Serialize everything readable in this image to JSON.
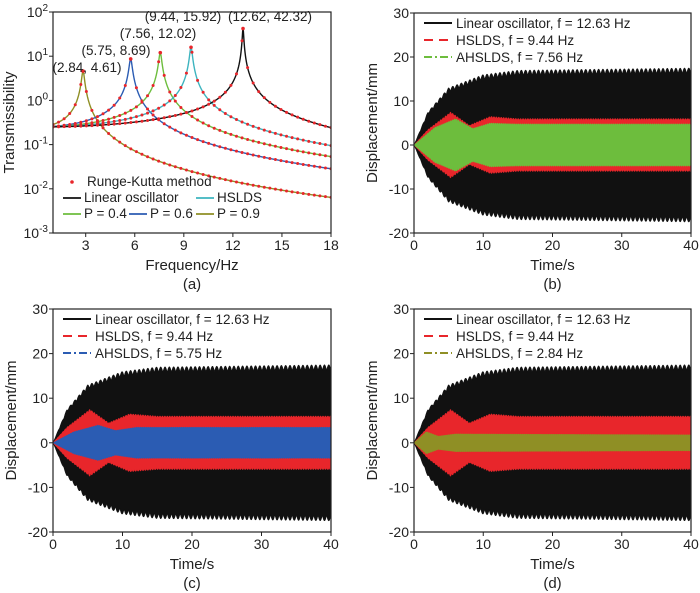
{
  "chart_data": [
    {
      "panel": "(a)",
      "type": "line",
      "xlabel": "Frequency/Hz",
      "ylabel": "Transmissibility",
      "xlim": [
        1,
        18
      ],
      "ylim": [
        0.001,
        100
      ],
      "yscale": "log",
      "xticks": [
        "3",
        "6",
        "9",
        "12",
        "15",
        "18"
      ],
      "yticks": [
        {
          "base": "10",
          "exp": "2"
        },
        {
          "base": "10",
          "exp": "1"
        },
        {
          "base": "10",
          "exp": "0"
        },
        {
          "base": "10",
          "exp": "-1"
        },
        {
          "base": "10",
          "exp": "-2"
        },
        {
          "base": "10",
          "exp": "-3"
        }
      ],
      "legend_position": "bottom-left",
      "legend": [
        {
          "name": "Runge-Kutta method",
          "color": "#e8262b",
          "style": "dots"
        },
        {
          "name": "Linear oscillator",
          "color": "#111111",
          "style": "solid"
        },
        {
          "name": "HSLDS",
          "color": "#3db4bf",
          "style": "solid"
        },
        {
          "name": "P = 0.4",
          "color": "#6dbd3d",
          "style": "solid"
        },
        {
          "name": "P = 0.6",
          "color": "#2b5cb3",
          "style": "solid"
        },
        {
          "name": "P = 0.9",
          "color": "#8f8f25",
          "style": "solid"
        }
      ],
      "series": [
        {
          "legend": "P = 0.9",
          "peak_frequency": 2.84,
          "peak_transmissibility": 4.61,
          "color": "#8f8f25"
        },
        {
          "legend": "P = 0.6",
          "peak_frequency": 5.75,
          "peak_transmissibility": 8.69,
          "color": "#2b5cb3"
        },
        {
          "legend": "P = 0.4",
          "peak_frequency": 7.56,
          "peak_transmissibility": 12.02,
          "color": "#6dbd3d"
        },
        {
          "legend": "HSLDS",
          "peak_frequency": 9.44,
          "peak_transmissibility": 15.92,
          "color": "#3db4bf"
        },
        {
          "legend": "Linear oscillator",
          "peak_frequency": 12.62,
          "peak_transmissibility": 42.32,
          "color": "#111111"
        }
      ],
      "low_frequency_transmissibility": 0.25,
      "annotations": [
        "(2.84, 4.61)",
        "(5.75, 8.69)",
        "(7.56, 12.02)",
        "(9.44, 15.92)",
        "(12.62, 42.32)"
      ],
      "caption": "(a)"
    },
    {
      "panel": "(b)",
      "type": "area",
      "xlabel": "Time/s",
      "ylabel": "Displacement/mm",
      "xlim": [
        0,
        40
      ],
      "ylim": [
        -20,
        30
      ],
      "xticks": [
        "0",
        "10",
        "20",
        "30",
        "40"
      ],
      "yticks": [
        "30",
        "20",
        "10",
        "0",
        "-10",
        "-20"
      ],
      "legend_position": "top-left",
      "series": [
        {
          "name": "Linear oscillator, f = 12.63 Hz",
          "color": "#111111",
          "style": "solid",
          "envelope": [
            [
              0,
              0
            ],
            [
              2,
              7.5
            ],
            [
              5,
              13
            ],
            [
              10,
              16
            ],
            [
              15,
              17
            ],
            [
              40,
              17.5
            ]
          ]
        },
        {
          "name": "HSLDS, f = 9.44 Hz",
          "color": "#e8262b",
          "style": "dashed",
          "envelope": [
            [
              0,
              0
            ],
            [
              2,
              3.5
            ],
            [
              5.3,
              7.5
            ],
            [
              8,
              4.5
            ],
            [
              11,
              6.5
            ],
            [
              15,
              6
            ],
            [
              40,
              6
            ]
          ]
        },
        {
          "name": "AHSLDS, f = 7.56 Hz",
          "color": "#6dbd3d",
          "style": "dashdot",
          "envelope": [
            [
              0,
              0
            ],
            [
              3,
              4
            ],
            [
              6,
              6
            ],
            [
              8.5,
              3.8
            ],
            [
              11,
              5
            ],
            [
              15,
              4.8
            ],
            [
              40,
              4.8
            ]
          ]
        }
      ],
      "caption": "(b)"
    },
    {
      "panel": "(c)",
      "type": "area",
      "xlabel": "Time/s",
      "ylabel": "Displacement/mm",
      "xlim": [
        0,
        40
      ],
      "ylim": [
        -20,
        30
      ],
      "xticks": [
        "0",
        "10",
        "20",
        "30",
        "40"
      ],
      "yticks": [
        "30",
        "20",
        "10",
        "0",
        "-10",
        "-20"
      ],
      "legend_position": "top-left",
      "series": [
        {
          "name": "Linear oscillator, f = 12.63 Hz",
          "color": "#111111",
          "style": "solid",
          "envelope": [
            [
              0,
              0
            ],
            [
              2,
              7.5
            ],
            [
              5,
              13
            ],
            [
              10,
              16
            ],
            [
              15,
              17
            ],
            [
              40,
              17.5
            ]
          ]
        },
        {
          "name": "HSLDS, f = 9.44 Hz",
          "color": "#e8262b",
          "style": "dashed",
          "envelope": [
            [
              0,
              0
            ],
            [
              2,
              3.5
            ],
            [
              5.3,
              7.5
            ],
            [
              8,
              4.5
            ],
            [
              11,
              6.5
            ],
            [
              15,
              6
            ],
            [
              40,
              6
            ]
          ]
        },
        {
          "name": "AHSLDS, f = 5.75 Hz",
          "color": "#2b5cb3",
          "style": "dashdot",
          "envelope": [
            [
              0,
              0
            ],
            [
              3,
              2.5
            ],
            [
              6.5,
              4
            ],
            [
              9,
              2.8
            ],
            [
              12,
              3.5
            ],
            [
              40,
              3.5
            ]
          ]
        }
      ],
      "caption": "(c)"
    },
    {
      "panel": "(d)",
      "type": "area",
      "xlabel": "Time/s",
      "ylabel": "Displacement/mm",
      "xlim": [
        0,
        40
      ],
      "ylim": [
        -20,
        30
      ],
      "xticks": [
        "0",
        "10",
        "20",
        "30",
        "40"
      ],
      "yticks": [
        "30",
        "20",
        "10",
        "0",
        "-10",
        "-20"
      ],
      "legend_position": "top-left",
      "series": [
        {
          "name": "Linear oscillator, f = 12.63 Hz",
          "color": "#111111",
          "style": "solid",
          "envelope": [
            [
              0,
              0
            ],
            [
              2,
              7.5
            ],
            [
              5,
              13
            ],
            [
              10,
              16
            ],
            [
              15,
              17
            ],
            [
              40,
              17.5
            ]
          ]
        },
        {
          "name": "HSLDS, f = 9.44 Hz",
          "color": "#e8262b",
          "style": "dashed",
          "envelope": [
            [
              0,
              0
            ],
            [
              2,
              3.5
            ],
            [
              5.3,
              7.5
            ],
            [
              8,
              4.5
            ],
            [
              11,
              6.5
            ],
            [
              15,
              6
            ],
            [
              40,
              6
            ]
          ]
        },
        {
          "name": "AHSLDS, f = 2.84 Hz",
          "color": "#8f8f25",
          "style": "dashdot",
          "envelope": [
            [
              0,
              0
            ],
            [
              1.8,
              2.5
            ],
            [
              3.5,
              1.5
            ],
            [
              6,
              2
            ],
            [
              40,
              1.8
            ]
          ]
        }
      ],
      "caption": "(d)"
    }
  ]
}
